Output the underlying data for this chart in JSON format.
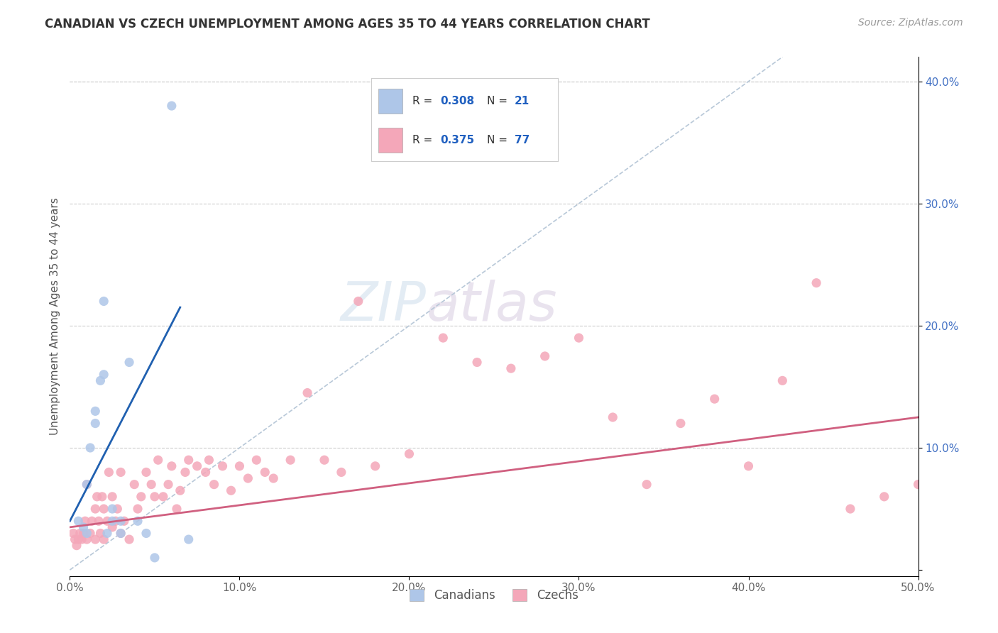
{
  "title": "CANADIAN VS CZECH UNEMPLOYMENT AMONG AGES 35 TO 44 YEARS CORRELATION CHART",
  "source": "Source: ZipAtlas.com",
  "ylabel": "Unemployment Among Ages 35 to 44 years",
  "xlim": [
    0.0,
    0.5
  ],
  "ylim": [
    -0.005,
    0.42
  ],
  "xticks": [
    0.0,
    0.1,
    0.2,
    0.3,
    0.4,
    0.5
  ],
  "xticklabels": [
    "0.0%",
    "10.0%",
    "20.0%",
    "30.0%",
    "40.0%",
    "50.0%"
  ],
  "yticks_right": [
    0.0,
    0.1,
    0.2,
    0.3,
    0.4
  ],
  "yticklabels_right": [
    "",
    "10.0%",
    "20.0%",
    "30.0%",
    "40.0%"
  ],
  "canadian_R": "0.308",
  "canadian_N": "21",
  "czech_R": "0.375",
  "czech_N": "77",
  "canadian_color": "#aec6e8",
  "czech_color": "#f4a7b9",
  "canadian_line_color": "#2060b0",
  "czech_line_color": "#d06080",
  "diagonal_color": "#b8c8d8",
  "background_color": "#ffffff",
  "canadians_x": [
    0.005,
    0.008,
    0.01,
    0.01,
    0.012,
    0.015,
    0.015,
    0.018,
    0.02,
    0.02,
    0.022,
    0.025,
    0.025,
    0.03,
    0.03,
    0.035,
    0.04,
    0.045,
    0.05,
    0.06,
    0.07
  ],
  "canadians_y": [
    0.04,
    0.035,
    0.03,
    0.07,
    0.1,
    0.12,
    0.13,
    0.155,
    0.16,
    0.22,
    0.03,
    0.04,
    0.05,
    0.03,
    0.04,
    0.17,
    0.04,
    0.03,
    0.01,
    0.38,
    0.025
  ],
  "canadians_outlier_x": [
    0.025
  ],
  "canadians_outlier_y": [
    0.38
  ],
  "czechs_x": [
    0.002,
    0.003,
    0.004,
    0.005,
    0.006,
    0.007,
    0.008,
    0.009,
    0.01,
    0.01,
    0.012,
    0.013,
    0.015,
    0.015,
    0.016,
    0.017,
    0.018,
    0.019,
    0.02,
    0.02,
    0.022,
    0.023,
    0.025,
    0.025,
    0.027,
    0.028,
    0.03,
    0.03,
    0.032,
    0.035,
    0.038,
    0.04,
    0.042,
    0.045,
    0.048,
    0.05,
    0.052,
    0.055,
    0.058,
    0.06,
    0.063,
    0.065,
    0.068,
    0.07,
    0.075,
    0.08,
    0.082,
    0.085,
    0.09,
    0.095,
    0.1,
    0.105,
    0.11,
    0.115,
    0.12,
    0.13,
    0.14,
    0.15,
    0.16,
    0.17,
    0.18,
    0.2,
    0.22,
    0.24,
    0.26,
    0.28,
    0.3,
    0.32,
    0.34,
    0.36,
    0.38,
    0.4,
    0.42,
    0.44,
    0.46,
    0.48,
    0.5
  ],
  "czechs_y": [
    0.03,
    0.025,
    0.02,
    0.025,
    0.03,
    0.025,
    0.03,
    0.04,
    0.025,
    0.07,
    0.03,
    0.04,
    0.025,
    0.05,
    0.06,
    0.04,
    0.03,
    0.06,
    0.025,
    0.05,
    0.04,
    0.08,
    0.035,
    0.06,
    0.04,
    0.05,
    0.03,
    0.08,
    0.04,
    0.025,
    0.07,
    0.05,
    0.06,
    0.08,
    0.07,
    0.06,
    0.09,
    0.06,
    0.07,
    0.085,
    0.05,
    0.065,
    0.08,
    0.09,
    0.085,
    0.08,
    0.09,
    0.07,
    0.085,
    0.065,
    0.085,
    0.075,
    0.09,
    0.08,
    0.075,
    0.09,
    0.145,
    0.09,
    0.08,
    0.22,
    0.085,
    0.095,
    0.19,
    0.17,
    0.165,
    0.175,
    0.19,
    0.125,
    0.07,
    0.12,
    0.14,
    0.085,
    0.155,
    0.235,
    0.05,
    0.06,
    0.07
  ],
  "canadian_line_x": [
    0.0,
    0.065
  ],
  "canadian_line_y": [
    0.04,
    0.215
  ],
  "czech_line_x": [
    0.0,
    0.5
  ],
  "czech_line_y": [
    0.035,
    0.125
  ]
}
